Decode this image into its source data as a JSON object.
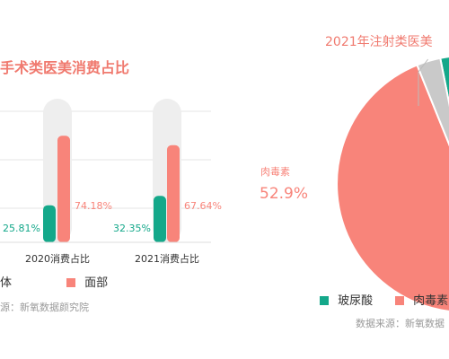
{
  "left_chart": {
    "title": "手术类医美消费占比",
    "legend": [
      "体",
      "面部"
    ],
    "source": "源：新氧数据颜究院"
  },
  "right_chart": {
    "title": "2021年注射类医美",
    "legend": [
      "玻尿酸",
      "肉毒素"
    ],
    "source": "数据来源：新氧数据"
  },
  "colors": {
    "teal": "#14a88a",
    "salmon": "#f8847a",
    "gray_track": "#eeeeee",
    "gray_slice": "#c9c9c9",
    "source_text": "#9a9a9a"
  },
  "chart_data": [
    {
      "type": "bar",
      "title": "手术类医美消费占比",
      "categories": [
        "2020消费占比",
        "2021消费占比"
      ],
      "series": [
        {
          "name": "体",
          "values": [
            25.81,
            32.35
          ],
          "labels": [
            "25.81%",
            "32.35%"
          ]
        },
        {
          "name": "面部",
          "values": [
            74.18,
            67.64
          ],
          "labels": [
            "74.18%",
            "67.64%"
          ]
        }
      ],
      "ylim": [
        0,
        100
      ],
      "grid": true,
      "legend_position": "bottom"
    },
    {
      "type": "pie",
      "title": "2021年注射类医美",
      "slices": [
        {
          "name": "肉毒素",
          "value": 52.9,
          "label": "52.9%"
        },
        {
          "name": "玻尿酸",
          "value": 44.1
        },
        {
          "name": "",
          "value": 3.0
        }
      ],
      "legend_position": "bottom"
    }
  ]
}
